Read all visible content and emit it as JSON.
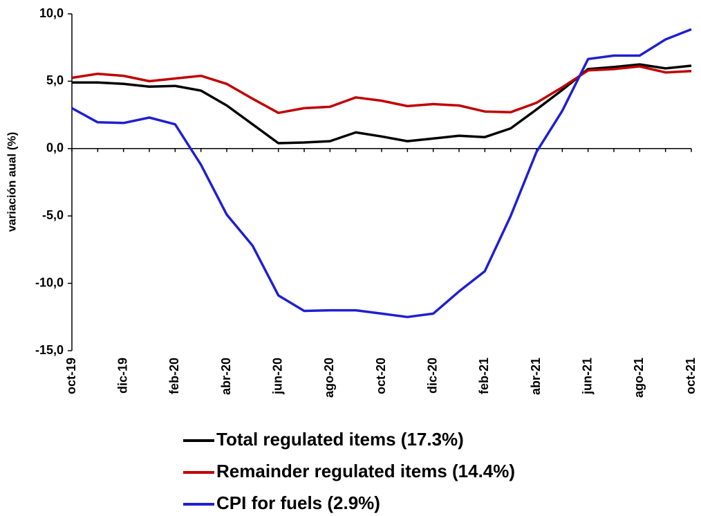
{
  "chart_data": {
    "type": "line",
    "y_label": "variación aual (%)",
    "categories": [
      "oct-19",
      null,
      "dic-19",
      null,
      "feb-20",
      null,
      "abr-20",
      null,
      "jun-20",
      null,
      "ago-20",
      null,
      "oct-20",
      null,
      "dic-20",
      null,
      "feb-21",
      null,
      "abr-21",
      null,
      "jun-21",
      null,
      "ago-21",
      null,
      "oct-21"
    ],
    "series": [
      {
        "name": "Total regulated items (17.3%)",
        "color": "#000000",
        "values": [
          4.9,
          4.9,
          4.8,
          4.6,
          4.65,
          4.3,
          3.2,
          1.8,
          0.4,
          0.45,
          0.55,
          1.2,
          0.9,
          0.55,
          0.75,
          0.95,
          0.85,
          1.5,
          2.9,
          4.35,
          5.9,
          6.05,
          6.25,
          5.95,
          6.15
        ]
      },
      {
        "name": "Remainder regulated items (14.4%)",
        "color": "#c00000",
        "values": [
          5.25,
          5.55,
          5.4,
          5.0,
          5.2,
          5.4,
          4.8,
          3.7,
          2.65,
          3.0,
          3.1,
          3.8,
          3.55,
          3.15,
          3.3,
          3.2,
          2.75,
          2.7,
          3.4,
          4.55,
          5.8,
          5.9,
          6.1,
          5.65,
          5.75
        ]
      },
      {
        "name": "CPI for fuels (2.9%)",
        "color": "#1f1fd1",
        "values": [
          3.0,
          1.95,
          1.9,
          2.3,
          1.8,
          -1.2,
          -4.9,
          -7.2,
          -10.9,
          -12.05,
          -12.0,
          -12.0,
          -12.25,
          -12.5,
          -12.25,
          -10.6,
          -9.1,
          -5.0,
          -0.25,
          2.8,
          6.65,
          6.9,
          6.9,
          8.1,
          8.85
        ]
      }
    ],
    "ylim": [
      -15,
      10
    ],
    "yticks": [
      {
        "value": -15,
        "label": "-15,0"
      },
      {
        "value": -10,
        "label": "-10,0"
      },
      {
        "value": -5,
        "label": "-5,0"
      },
      {
        "value": 0,
        "label": "0,0"
      },
      {
        "value": 5,
        "label": "5,0"
      },
      {
        "value": 10,
        "label": "10,0"
      }
    ],
    "grid": false,
    "legend": "bottom"
  }
}
